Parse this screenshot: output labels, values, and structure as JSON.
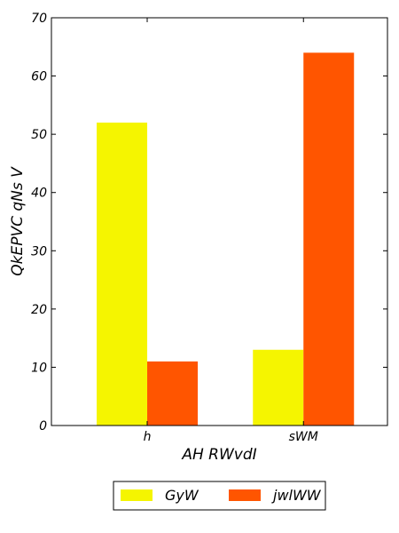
{
  "chart_data": {
    "type": "bar",
    "categories": [
      "h",
      "sWM"
    ],
    "series": [
      {
        "name": "GyW",
        "values": [
          52,
          13
        ],
        "color": "#f5f500"
      },
      {
        "name": "jwlWW",
        "values": [
          11,
          64
        ],
        "color": "#ff5500"
      }
    ],
    "xlabel": "AH  RWvdI",
    "ylabel": "QkEPVC qNs  V",
    "ylim": [
      0,
      70
    ],
    "yticks": [
      0,
      10,
      20,
      30,
      40,
      50,
      60,
      70
    ],
    "grid": false,
    "legend_position": "bottom-center"
  }
}
